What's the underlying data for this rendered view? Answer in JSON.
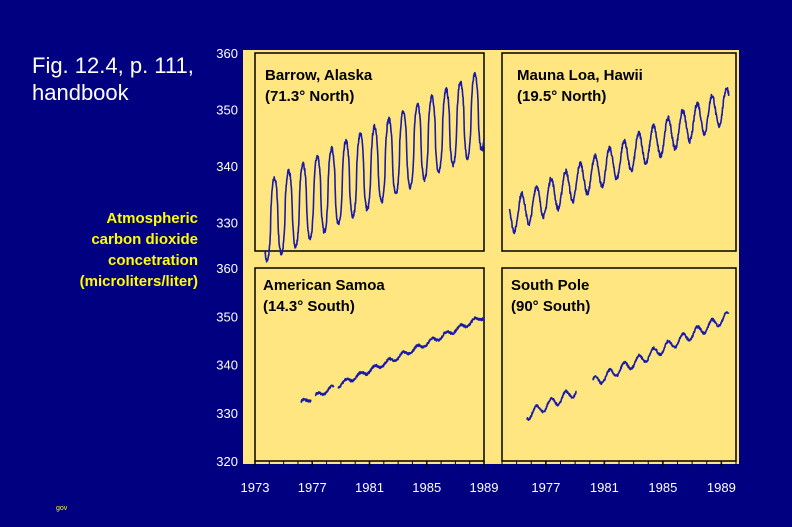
{
  "slide": {
    "title_line1": "Fig. 12.4, p. 111,",
    "title_line2": "handbook",
    "ylabel_lines": [
      "Atmospheric",
      "carbon dioxide",
      "concetration",
      "(microliters/liter)"
    ],
    "footer": "gov"
  },
  "colors": {
    "background": "#000080",
    "plot_background": "#ffe680",
    "line": "#1a1aa8",
    "ylabel_text": "#ffff00",
    "axis_text": "#ffffff"
  },
  "chart_data": [
    {
      "type": "line",
      "title": "Barrow, Alaska",
      "subtitle": "(71.3° North)",
      "ylim": [
        325,
        360
      ],
      "xlim": [
        1973,
        1989
      ],
      "yticks": [
        330,
        340,
        350,
        360
      ],
      "amplitude": 14,
      "trend": [
        {
          "x": 1973.7,
          "y": 330
        },
        {
          "x": 1989,
          "y": 350
        }
      ],
      "gaps": []
    },
    {
      "type": "line",
      "title": "Mauna Loa, Hawii",
      "subtitle": "(19.5° North)",
      "ylim": [
        325,
        360
      ],
      "xlim": [
        1974,
        1990
      ],
      "yticks": [],
      "amplitude": 6,
      "trend": [
        {
          "x": 1974.5,
          "y": 331
        },
        {
          "x": 1989.5,
          "y": 351
        }
      ],
      "gaps": []
    },
    {
      "type": "line",
      "title": "American Samoa",
      "subtitle": "(14.3° South)",
      "ylim": [
        320,
        360
      ],
      "xlim": [
        1973,
        1989
      ],
      "xticks": [
        1973,
        1977,
        1981,
        1985,
        1989
      ],
      "yticks": [
        320,
        330,
        340,
        350,
        360
      ],
      "amplitude": 1,
      "trend": [
        {
          "x": 1976.2,
          "y": 332
        },
        {
          "x": 1989,
          "y": 350
        }
      ],
      "gaps": [
        [
          1976.9,
          1977.2
        ],
        [
          1978.5,
          1978.8
        ]
      ]
    },
    {
      "type": "line",
      "title": "South Pole",
      "subtitle": "(90° South)",
      "ylim": [
        320,
        360
      ],
      "xlim": [
        1974,
        1990
      ],
      "xticks": [
        1977,
        1981,
        1985,
        1989
      ],
      "yticks": [],
      "amplitude": 2,
      "trend": [
        {
          "x": 1975.7,
          "y": 329.5
        },
        {
          "x": 1989.5,
          "y": 350
        }
      ],
      "gaps": [
        [
          1979.1,
          1980.2
        ]
      ]
    }
  ]
}
